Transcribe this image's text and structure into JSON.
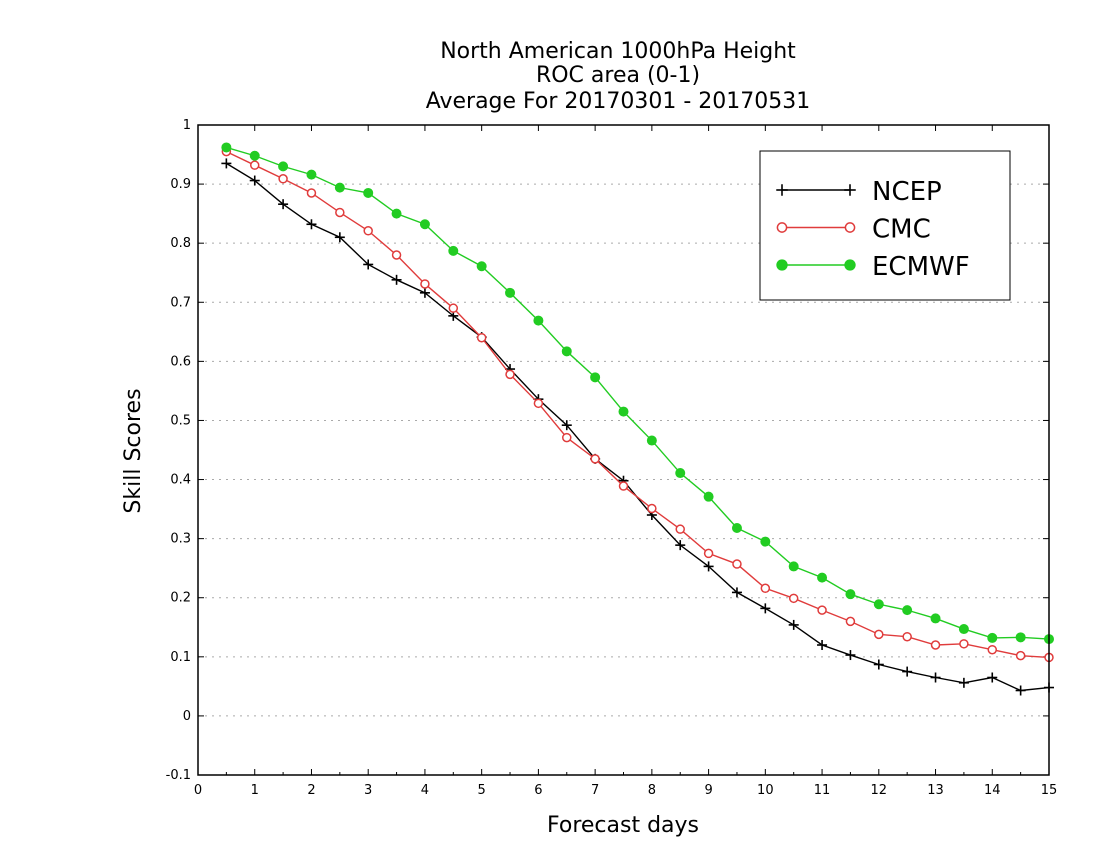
{
  "chart_data": {
    "type": "line",
    "title_lines": [
      "North American 1000hPa Height",
      "ROC area (0-1)",
      "Average For 20170301 - 20170531"
    ],
    "xlabel": "Forecast days",
    "ylabel": "Skill Scores",
    "xlim": [
      0,
      15
    ],
    "ylim": [
      -0.1,
      1
    ],
    "x_ticks": [
      0,
      1,
      2,
      3,
      4,
      5,
      6,
      7,
      8,
      9,
      10,
      11,
      12,
      13,
      14,
      15
    ],
    "y_ticks": [
      -0.1,
      0,
      0.1,
      0.2,
      0.3,
      0.4,
      0.5,
      0.6,
      0.7,
      0.8,
      0.9,
      1
    ],
    "y_tick_labels": [
      "-0.1",
      "0",
      "0.1",
      "0.2",
      "0.3",
      "0.4",
      "0.5",
      "0.6",
      "0.7",
      "0.8",
      "0.9",
      "1"
    ],
    "grid": "horizontal dotted",
    "legend_position": "top-right",
    "x": [
      0.5,
      1,
      1.5,
      2,
      2.5,
      3,
      3.5,
      4,
      4.5,
      5,
      5.5,
      6,
      6.5,
      7,
      7.5,
      8,
      8.5,
      9,
      9.5,
      10,
      10.5,
      11,
      11.5,
      12,
      12.5,
      13,
      13.5,
      14,
      14.5,
      15
    ],
    "series": [
      {
        "name": "NCEP",
        "color": "#000000",
        "marker": "plus",
        "values": [
          0.935,
          0.906,
          0.866,
          0.832,
          0.81,
          0.764,
          0.738,
          0.716,
          0.677,
          0.641,
          0.587,
          0.536,
          0.492,
          0.435,
          0.398,
          0.34,
          0.289,
          0.253,
          0.209,
          0.182,
          0.154,
          0.12,
          0.103,
          0.087,
          0.075,
          0.065,
          0.056,
          0.065,
          0.043,
          0.048
        ]
      },
      {
        "name": "CMC",
        "color": "#e03c3c",
        "marker": "open-circle",
        "values": [
          0.955,
          0.932,
          0.909,
          0.885,
          0.852,
          0.821,
          0.78,
          0.731,
          0.69,
          0.64,
          0.578,
          0.529,
          0.471,
          0.435,
          0.389,
          0.351,
          0.316,
          0.275,
          0.257,
          0.216,
          0.199,
          0.179,
          0.16,
          0.138,
          0.134,
          0.12,
          0.122,
          0.112,
          0.102,
          0.099
        ]
      },
      {
        "name": "ECMWF",
        "color": "#22cc22",
        "marker": "filled-circle",
        "values": [
          0.962,
          0.948,
          0.93,
          0.916,
          0.894,
          0.885,
          0.85,
          0.832,
          0.787,
          0.761,
          0.716,
          0.669,
          0.617,
          0.573,
          0.515,
          0.466,
          0.411,
          0.371,
          0.318,
          0.295,
          0.253,
          0.234,
          0.206,
          0.189,
          0.179,
          0.165,
          0.147,
          0.132,
          0.133,
          0.13
        ]
      }
    ]
  }
}
